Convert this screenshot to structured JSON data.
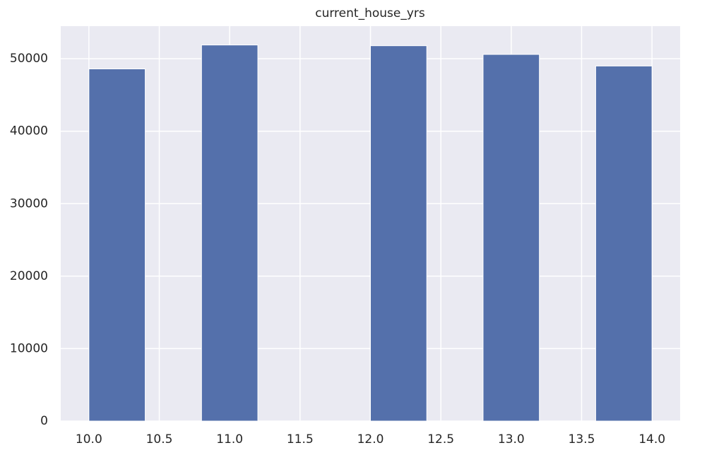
{
  "chart_data": {
    "type": "histogram",
    "title": "current_house_yrs",
    "bins": [
      10.0,
      10.4,
      10.8,
      11.2,
      11.6,
      12.0,
      12.4,
      12.8,
      13.2,
      13.6,
      14.0
    ],
    "values": [
      48600,
      0,
      51900,
      0,
      0,
      51800,
      0,
      50600,
      0,
      49000
    ],
    "color": "#5470ab",
    "xlim": [
      9.8,
      14.2
    ],
    "xticks": [
      {
        "value": 10,
        "label": "10.0"
      },
      10.5,
      {
        "value": 11,
        "label": "11.0"
      },
      11.5,
      {
        "value": 12,
        "label": "12.0"
      },
      12.5,
      {
        "value": 13,
        "label": "13.0"
      },
      13.5,
      {
        "value": 14,
        "label": "14.0"
      }
    ],
    "ylim": [
      0,
      54500
    ],
    "yticks": [
      0,
      10000,
      20000,
      30000,
      40000,
      50000
    ],
    "grid": true
  }
}
